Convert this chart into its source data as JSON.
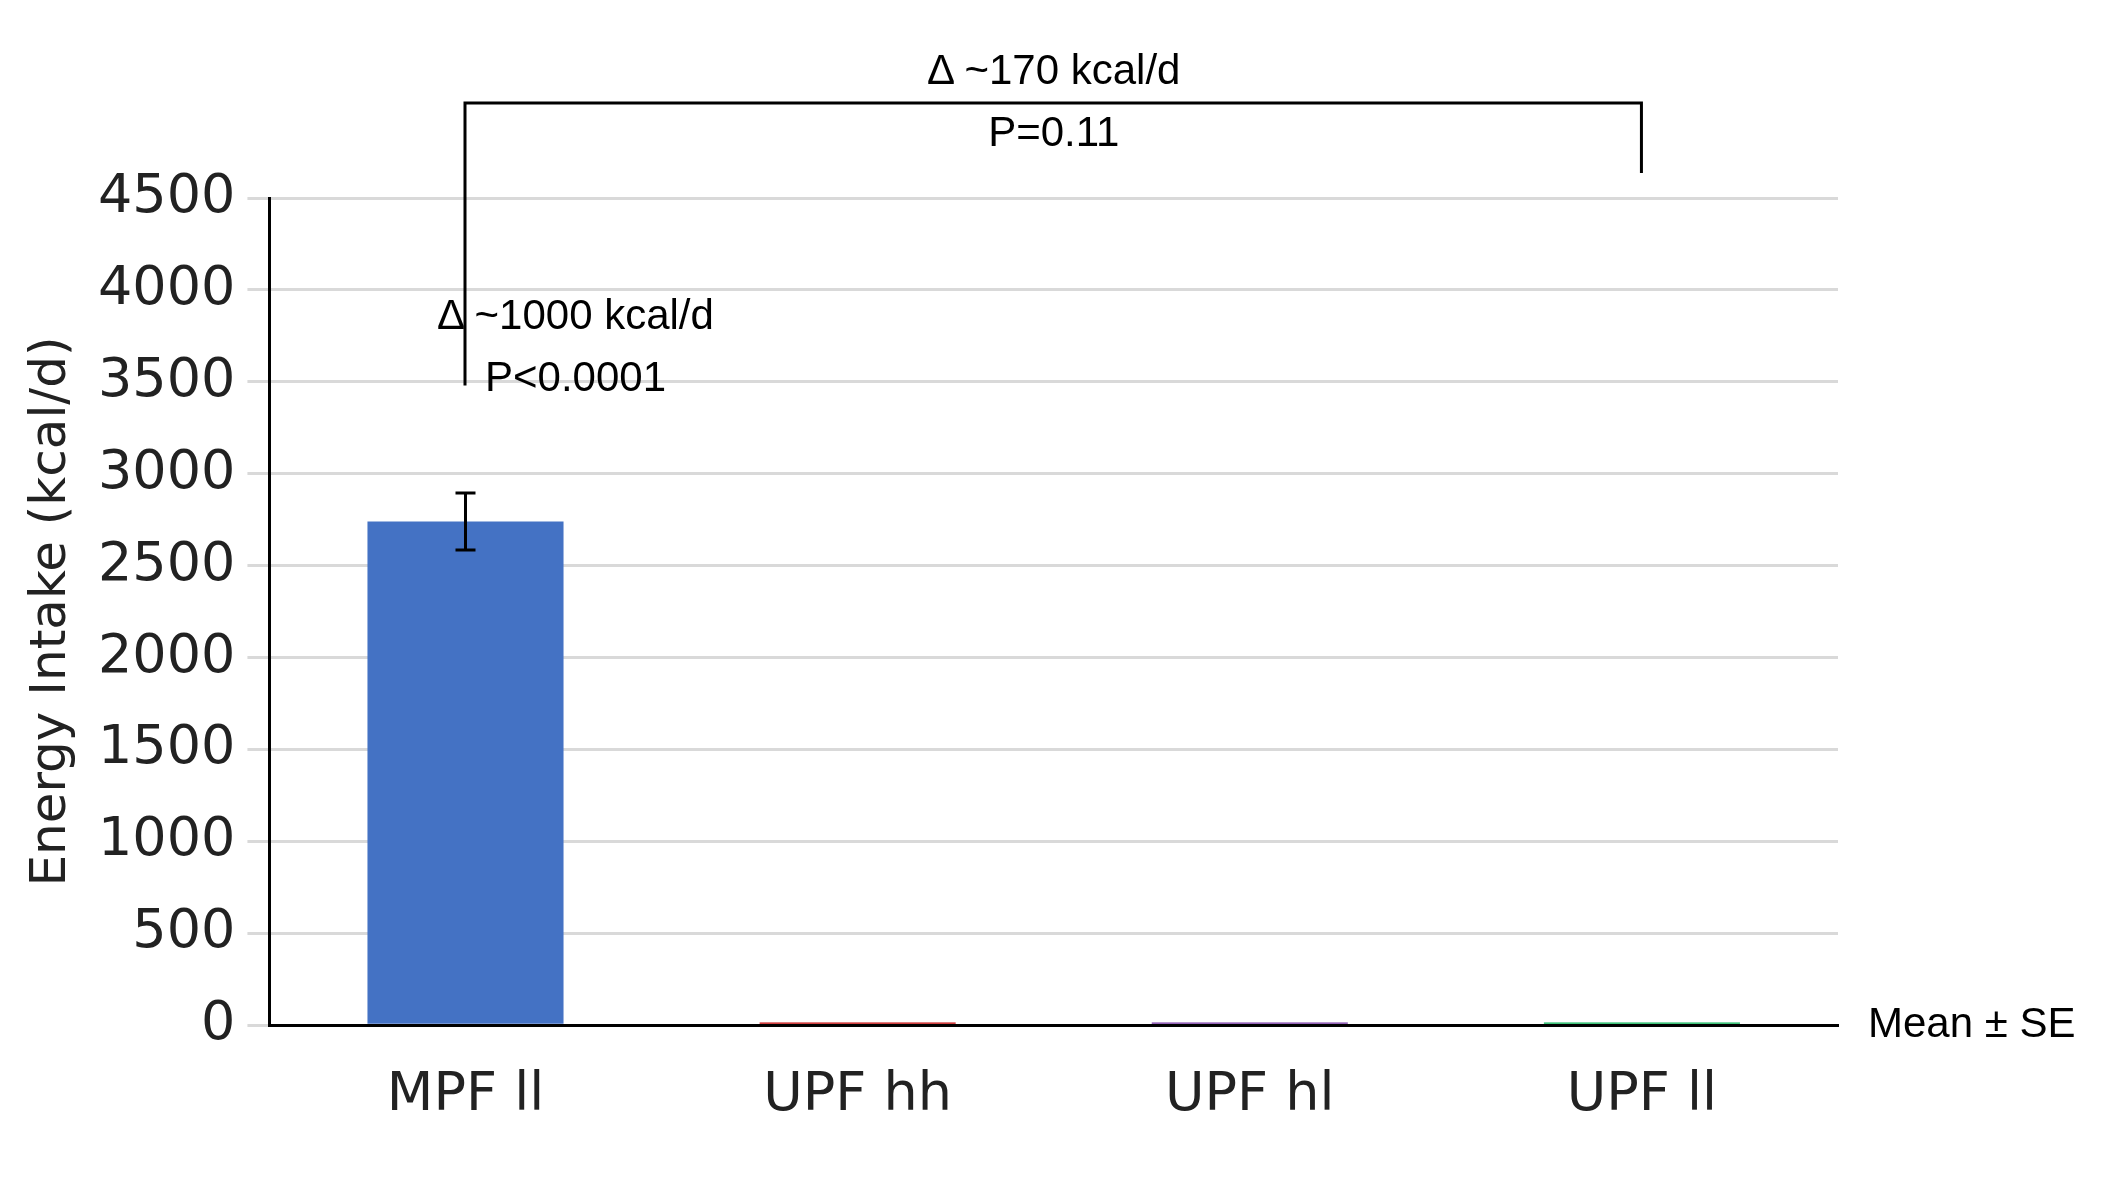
{
  "chart_data": {
    "type": "bar",
    "ylabel": "Energy Intake (kcal/d)",
    "categories": [
      "MPF ll",
      "UPF hh",
      "UPF hl",
      "UPF ll"
    ],
    "values": [
      2740,
      15,
      15,
      15
    ],
    "colors": [
      "#4472c4",
      "#c00000",
      "#7030a0",
      "#00b050"
    ],
    "errors": [
      155,
      null,
      null,
      null
    ],
    "ylim": [
      0,
      4500
    ],
    "yticks": [
      0,
      500,
      1000,
      1500,
      2000,
      2500,
      3000,
      3500,
      4000,
      4500
    ],
    "grid": "y",
    "legend": false,
    "annotations": [
      "Δ ~170 kcal/d\nP=0.11",
      "Δ ~1000 kcal/d\nP<0.0001",
      "Mean ± SE"
    ]
  }
}
